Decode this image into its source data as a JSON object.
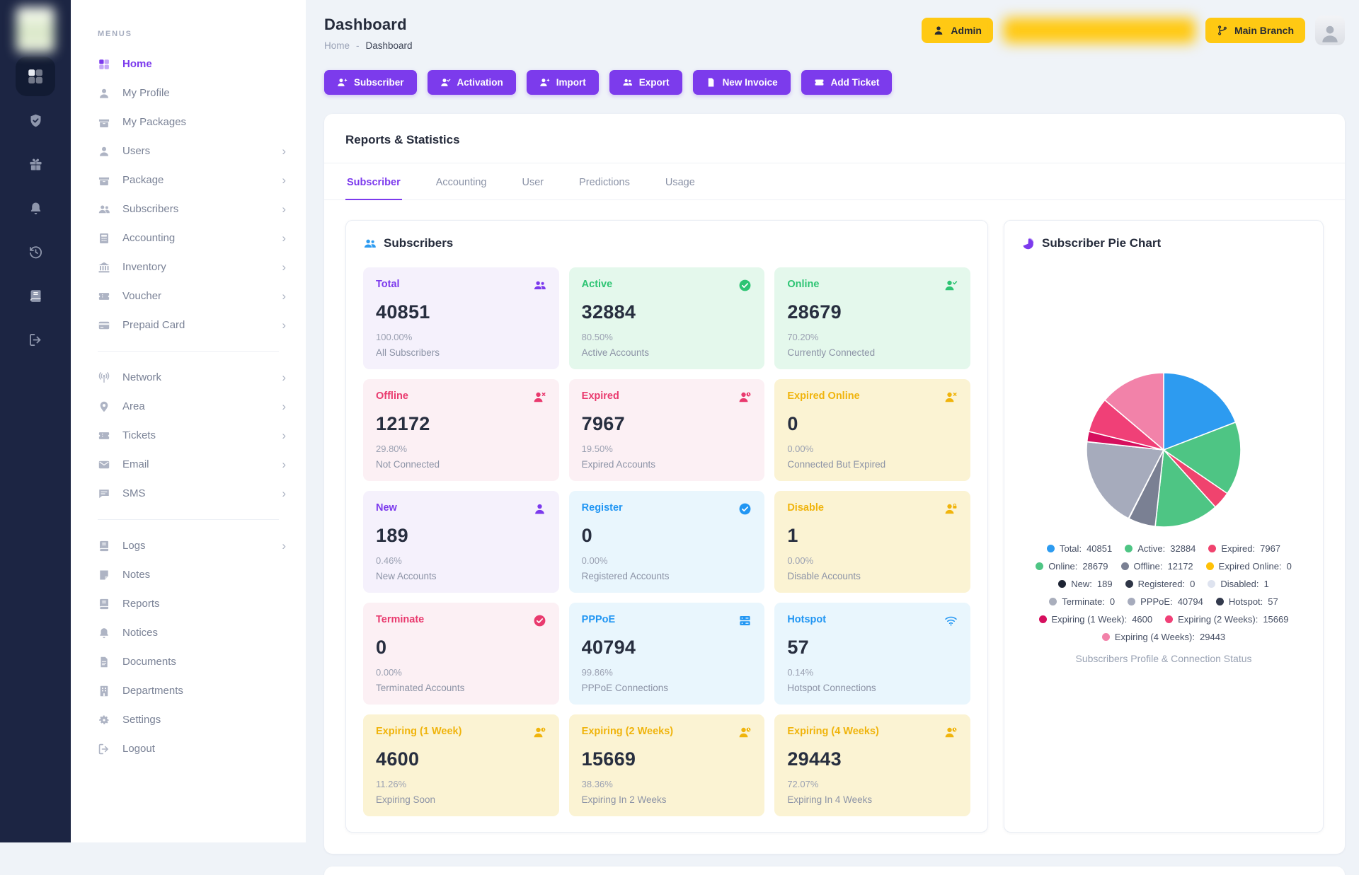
{
  "header": {
    "title": "Dashboard",
    "breadcrumb": {
      "home": "Home",
      "separator": "-",
      "current": "Dashboard"
    }
  },
  "userbar": {
    "admin_label": "Admin",
    "branch_label": "Main Branch"
  },
  "actions": [
    {
      "label": "Subscriber",
      "icon": "user-plus"
    },
    {
      "label": "Activation",
      "icon": "user-check"
    },
    {
      "label": "Import",
      "icon": "user-plus"
    },
    {
      "label": "Export",
      "icon": "users"
    },
    {
      "label": "New Invoice",
      "icon": "file"
    },
    {
      "label": "Add Ticket",
      "icon": "ticket"
    }
  ],
  "sidebar": {
    "menus_label": "MENUS",
    "sections": [
      {
        "items": [
          {
            "label": "Home",
            "icon": "grid",
            "state": "active"
          },
          {
            "label": "My Profile",
            "icon": "user"
          },
          {
            "label": "My Packages",
            "icon": "package"
          },
          {
            "label": "Users",
            "icon": "user",
            "chev": "has-chevron"
          },
          {
            "label": "Package",
            "icon": "package",
            "chev": "has-chevron"
          },
          {
            "label": "Subscribers",
            "icon": "users",
            "chev": "has-chevron"
          },
          {
            "label": "Accounting",
            "icon": "calculator",
            "chev": "has-chevron"
          },
          {
            "label": "Inventory",
            "icon": "bank",
            "chev": "has-chevron"
          },
          {
            "label": "Voucher",
            "icon": "ticket",
            "chev": "has-chevron"
          },
          {
            "label": "Prepaid Card",
            "icon": "card",
            "chev": "has-chevron"
          }
        ]
      },
      {
        "items": [
          {
            "label": "Network",
            "icon": "antenna",
            "chev": "has-chevron"
          },
          {
            "label": "Area",
            "icon": "pin",
            "chev": "has-chevron"
          },
          {
            "label": "Tickets",
            "icon": "ticket",
            "chev": "has-chevron"
          },
          {
            "label": "Email",
            "icon": "envelope",
            "chev": "has-chevron"
          },
          {
            "label": "SMS",
            "icon": "chat",
            "chev": "has-chevron"
          }
        ]
      },
      {
        "items": [
          {
            "label": "Logs",
            "icon": "book",
            "chev": "has-chevron"
          },
          {
            "label": "Notes",
            "icon": "note"
          },
          {
            "label": "Reports",
            "icon": "book"
          },
          {
            "label": "Notices",
            "icon": "bell"
          },
          {
            "label": "Documents",
            "icon": "file"
          },
          {
            "label": "Departments",
            "icon": "building"
          },
          {
            "label": "Settings",
            "icon": "gears"
          },
          {
            "label": "Logout",
            "icon": "signout"
          }
        ]
      }
    ]
  },
  "rail": {
    "items": [
      {
        "icon": "grid",
        "state": "active"
      },
      {
        "icon": "shield-check"
      },
      {
        "icon": "gift"
      },
      {
        "icon": "bell"
      },
      {
        "icon": "history"
      },
      {
        "icon": "book"
      },
      {
        "icon": "signout"
      }
    ]
  },
  "reports": {
    "title": "Reports & Statistics",
    "tabs": [
      {
        "label": "Subscriber",
        "state": "active"
      },
      {
        "label": "Accounting"
      },
      {
        "label": "User"
      },
      {
        "label": "Predictions"
      },
      {
        "label": "Usage"
      }
    ]
  },
  "subscribers_panel": {
    "title": "Subscribers",
    "cards": [
      {
        "label": "Total",
        "value": "40851",
        "percent": "100.00%",
        "sub": "All Subscribers",
        "tone": "purple",
        "icon": "users"
      },
      {
        "label": "Active",
        "value": "32884",
        "percent": "80.50%",
        "sub": "Active Accounts",
        "tone": "green",
        "icon": "check-circle"
      },
      {
        "label": "Online",
        "value": "28679",
        "percent": "70.20%",
        "sub": "Currently Connected",
        "tone": "green",
        "icon": "user-check"
      },
      {
        "label": "Offline",
        "value": "12172",
        "percent": "29.80%",
        "sub": "Not Connected",
        "tone": "pink",
        "icon": "user-x"
      },
      {
        "label": "Expired",
        "value": "7967",
        "percent": "19.50%",
        "sub": "Expired Accounts",
        "tone": "pink",
        "icon": "user-clock"
      },
      {
        "label": "Expired Online",
        "value": "0",
        "percent": "0.00%",
        "sub": "Connected But Expired",
        "tone": "yellow",
        "icon": "user-x"
      },
      {
        "label": "New",
        "value": "189",
        "percent": "0.46%",
        "sub": "New Accounts",
        "tone": "purple",
        "icon": "user"
      },
      {
        "label": "Register",
        "value": "0",
        "percent": "0.00%",
        "sub": "Registered Accounts",
        "tone": "blue",
        "icon": "check-circle"
      },
      {
        "label": "Disable",
        "value": "1",
        "percent": "0.00%",
        "sub": "Disable Accounts",
        "tone": "yellow",
        "icon": "user-lock"
      },
      {
        "label": "Terminate",
        "value": "0",
        "percent": "0.00%",
        "sub": "Terminated Accounts",
        "tone": "pink",
        "icon": "check-circle"
      },
      {
        "label": "PPPoE",
        "value": "40794",
        "percent": "99.86%",
        "sub": "PPPoE Connections",
        "tone": "blue",
        "icon": "server"
      },
      {
        "label": "Hotspot",
        "value": "57",
        "percent": "0.14%",
        "sub": "Hotspot Connections",
        "tone": "blue",
        "icon": "wifi"
      },
      {
        "label": "Expiring (1 Week)",
        "value": "4600",
        "percent": "11.26%",
        "sub": "Expiring Soon",
        "tone": "yellow",
        "icon": "user-clock"
      },
      {
        "label": "Expiring (2 Weeks)",
        "value": "15669",
        "percent": "38.36%",
        "sub": "Expiring In 2 Weeks",
        "tone": "yellow",
        "icon": "user-clock"
      },
      {
        "label": "Expiring (4 Weeks)",
        "value": "29443",
        "percent": "72.07%",
        "sub": "Expiring In 4 Weeks",
        "tone": "yellow",
        "icon": "user-clock"
      }
    ]
  },
  "pie_panel": {
    "title": "Subscriber Pie Chart",
    "caption": "Subscribers Profile & Connection Status"
  },
  "chart_data": {
    "type": "pie",
    "title": "Subscriber Pie Chart",
    "caption": "Subscribers Profile & Connection Status",
    "legend_position": "bottom",
    "series": [
      {
        "name": "Total",
        "value": 40851,
        "color": "#2D9BF0"
      },
      {
        "name": "Active",
        "value": 32884,
        "color": "#4EC584"
      },
      {
        "name": "Expired",
        "value": 7967,
        "color": "#F0436E"
      },
      {
        "name": "Online",
        "value": 28679,
        "color": "#4EC584"
      },
      {
        "name": "Offline",
        "value": 12172,
        "color": "#7A8093"
      },
      {
        "name": "Expired Online",
        "value": 0,
        "color": "#FFC107"
      },
      {
        "name": "New",
        "value": 189,
        "color": "#1E2433"
      },
      {
        "name": "Registered",
        "value": 0,
        "color": "#2E3546"
      },
      {
        "name": "Disabled",
        "value": 1,
        "color": "#DEE3EF"
      },
      {
        "name": "Terminate",
        "value": 0,
        "color": "#A9AEBC"
      },
      {
        "name": "PPPoE",
        "value": 40794,
        "color": "#A6ABBC"
      },
      {
        "name": "Hotspot",
        "value": 57,
        "color": "#333A4D"
      },
      {
        "name": "Expiring (1 Week)",
        "value": 4600,
        "color": "#D60F5E"
      },
      {
        "name": "Expiring (2 Weeks)",
        "value": 15669,
        "color": "#F04077"
      },
      {
        "name": "Expiring (4 Weeks)",
        "value": 29443,
        "color": "#F282A9"
      }
    ]
  }
}
